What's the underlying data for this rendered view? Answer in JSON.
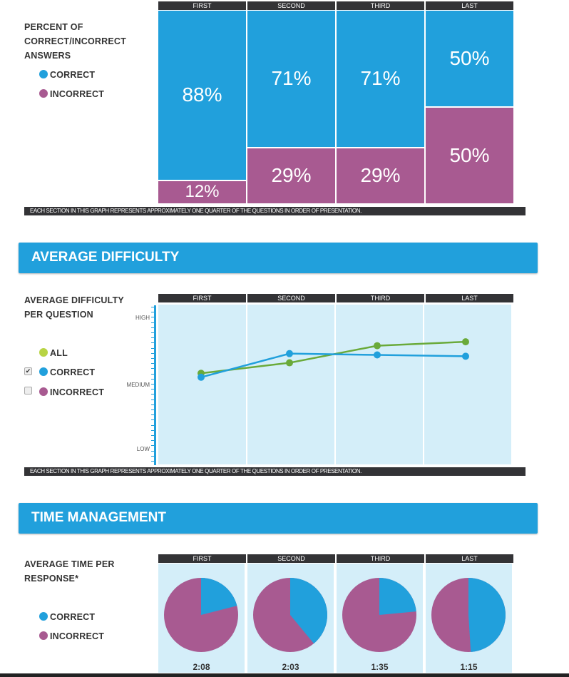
{
  "colors": {
    "correct": "#21a0dc",
    "incorrect": "#a85a91",
    "all": "#6aaa3a",
    "all_legend": "#b8d444",
    "panel": "#d4eef9",
    "header": "#333336"
  },
  "quarters": [
    "FIRST",
    "SECOND",
    "THIRD",
    "LAST"
  ],
  "note": "EACH SECTION IN THIS GRAPH REPRESENTS APPROXIMATELY ONE QUARTER OF THE QUESTIONS IN ORDER OF PRESENTATION.",
  "correctness": {
    "label": "PERCENT OF CORRECT/INCORRECT ANSWERS",
    "legend": {
      "correct": "CORRECT",
      "incorrect": "INCORRECT"
    }
  },
  "difficulty": {
    "section_title": "AVERAGE DIFFICULTY",
    "label": "AVERAGE DIFFICULTY PER QUESTION",
    "legend": {
      "all": "ALL",
      "correct": "CORRECT",
      "incorrect": "INCORRECT"
    },
    "checkboxes": {
      "correct": true,
      "incorrect": false
    },
    "yticks": {
      "high": "HIGH",
      "medium": "MEDIUM",
      "low": "LOW"
    }
  },
  "time": {
    "section_title": "TIME MANAGEMENT",
    "label": "AVERAGE TIME PER RESPONSE*",
    "legend": {
      "correct": "CORRECT",
      "incorrect": "INCORRECT"
    }
  },
  "chart_data": [
    {
      "type": "bar",
      "stacked": true,
      "categories": [
        "FIRST",
        "SECOND",
        "THIRD",
        "LAST"
      ],
      "series": [
        {
          "name": "CORRECT",
          "values": [
            88,
            71,
            71,
            50
          ],
          "labels": [
            "88%",
            "71%",
            "71%",
            "50%"
          ]
        },
        {
          "name": "INCORRECT",
          "values": [
            12,
            29,
            29,
            50
          ],
          "labels": [
            "12%",
            "29%",
            "29%",
            "50%"
          ]
        }
      ],
      "ylim": [
        0,
        100
      ]
    },
    {
      "type": "line",
      "categories": [
        "FIRST",
        "SECOND",
        "THIRD",
        "LAST"
      ],
      "yticks": [
        "LOW",
        "MEDIUM",
        "HIGH"
      ],
      "ylim": [
        0,
        1
      ],
      "series": [
        {
          "name": "ALL",
          "values": [
            0.58,
            0.66,
            0.79,
            0.82
          ]
        },
        {
          "name": "CORRECT",
          "values": [
            0.55,
            0.73,
            0.72,
            0.71
          ]
        }
      ]
    },
    {
      "type": "pie",
      "categories": [
        "FIRST",
        "SECOND",
        "THIRD",
        "LAST"
      ],
      "correct_fraction": [
        0.21,
        0.39,
        0.235,
        0.49
      ],
      "times": [
        "2:08",
        "2:03",
        "1:35",
        "1:15"
      ]
    }
  ]
}
